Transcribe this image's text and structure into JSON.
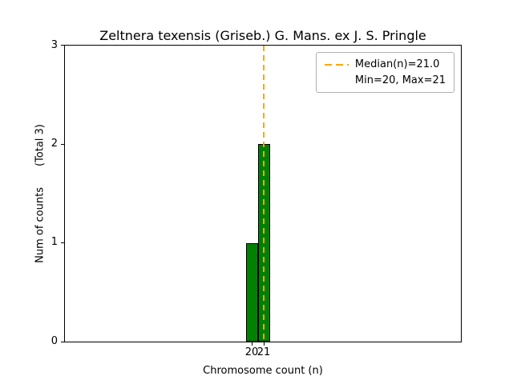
{
  "title": "Zeltnera texensis (Griseb.) G. Mans. ex J. S. Pringle",
  "axes": {
    "xlabel": "Chromosome count (n)",
    "ylabel_main": "Num of counts",
    "ylabel_total": "(Total 3)",
    "yticks": [
      "0",
      "1",
      "2",
      "3"
    ],
    "xticks": [
      "20",
      "21"
    ]
  },
  "legend": {
    "median_label": "Median(n)=21.0",
    "minmax_label": "Min=20, Max=21"
  },
  "chart_data": {
    "type": "bar",
    "categories": [
      20,
      21
    ],
    "values": [
      1,
      2
    ],
    "title": "Zeltnera texensis (Griseb.) G. Mans. ex J. S. Pringle",
    "xlabel": "Chromosome count (n)",
    "ylabel": "Num of counts    (Total 3)",
    "ylim": [
      0,
      3
    ],
    "yticks": [
      0,
      1,
      2,
      3
    ],
    "xticks": [
      20,
      21
    ],
    "total_counts": 3,
    "median": 21.0,
    "min": 20,
    "max": 21,
    "legend_entries": [
      "Median(n)=21.0",
      "Min=20, Max=21"
    ],
    "legend_position": "upper right",
    "grid": false,
    "bar_color": "#008000",
    "bar_edge_color": "#000000",
    "median_line_color": "#ffa500",
    "median_line_style": "dashed"
  }
}
